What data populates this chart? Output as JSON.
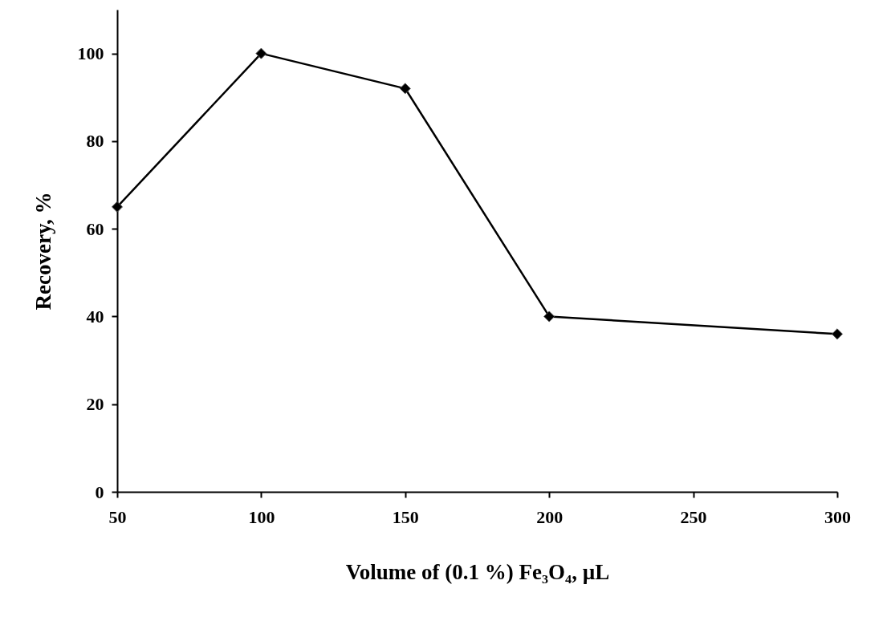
{
  "chart_data": {
    "type": "line",
    "xlabel": "Volume of (0.1 %) Fe₃O₄, µL",
    "ylabel": "Recovery, %",
    "x": [
      50,
      100,
      150,
      200,
      300
    ],
    "series": [
      {
        "color": "#000000",
        "values": [
          65,
          100,
          92,
          40,
          36
        ]
      }
    ],
    "xlim": [
      50,
      300
    ],
    "xticks": [
      50,
      100,
      150,
      200,
      250,
      300
    ],
    "ylim": [
      0,
      110
    ],
    "yticks": [
      0,
      20,
      40,
      60,
      80,
      100
    ],
    "grid": false,
    "marker": "diamond",
    "line_style": "solid"
  }
}
